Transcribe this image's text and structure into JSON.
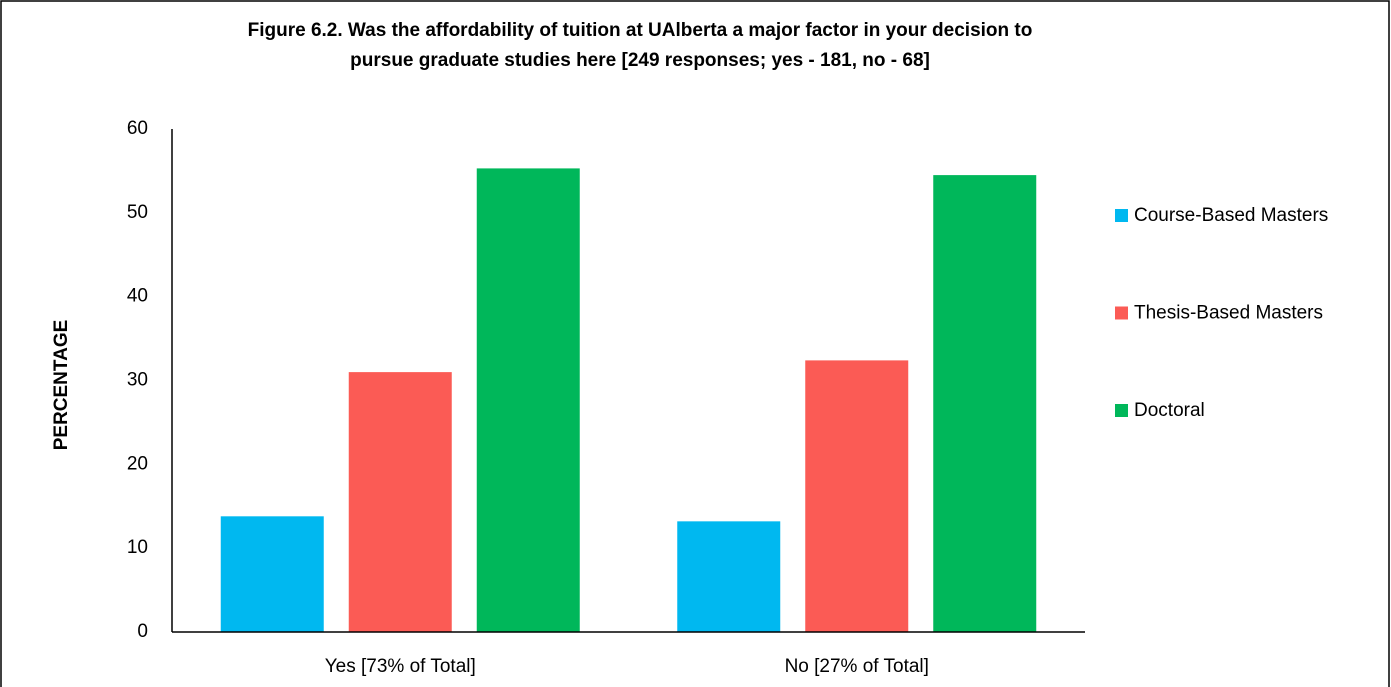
{
  "chart_data": {
    "type": "bar",
    "title": [
      "Figure 6.2. Was the affordability of tuition at UAlberta a major factor in your decision to",
      "pursue graduate studies here [249 responses; yes - 181, no - 68]"
    ],
    "y_label": "PERCENTAGE",
    "categories": [
      "Yes [73% of Total]",
      "No [27% of Total]"
    ],
    "series": [
      {
        "name": "Course-Based Masters",
        "color": "#00b8f0",
        "values": [
          13.8,
          13.2
        ]
      },
      {
        "name": "Thesis-Based Masters",
        "color": "#fb5b55",
        "values": [
          31.0,
          32.4
        ]
      },
      {
        "name": "Doctoral",
        "color": "#00b75a",
        "values": [
          55.3,
          54.5
        ]
      }
    ],
    "ylim": [
      0,
      60
    ],
    "yticks": [
      0,
      10,
      20,
      30,
      40,
      50,
      60
    ],
    "grid": false,
    "legend": "right"
  }
}
